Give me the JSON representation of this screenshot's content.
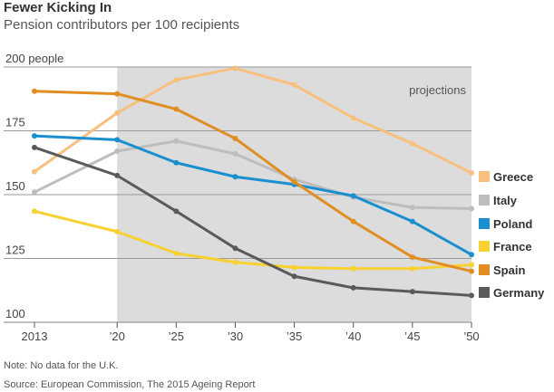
{
  "chart_data": {
    "type": "line",
    "title": "Fewer Kicking In",
    "subtitle": "Pension contributors per 100 recipients",
    "x": [
      2013,
      2020,
      2025,
      2030,
      2035,
      2040,
      2045,
      2050
    ],
    "x_tick_labels": [
      "2013",
      "’20",
      "’25",
      "’30",
      "’35",
      "’40",
      "’45",
      "’50"
    ],
    "y_tick_labels": [
      "200 people",
      "175",
      "150",
      "125",
      "100"
    ],
    "ylim": [
      100,
      200
    ],
    "shaded_region": {
      "from": 2020,
      "to": 2050,
      "label": "projections"
    },
    "series": [
      {
        "name": "Greece",
        "color": "#f8c07f",
        "values": [
          159,
          182,
          195,
          199.5,
          193,
          180,
          170,
          158.5
        ]
      },
      {
        "name": "Italy",
        "color": "#bdbdbd",
        "values": [
          151,
          167,
          171,
          166,
          156,
          149,
          145,
          144.5
        ]
      },
      {
        "name": "Poland",
        "color": "#1a8fd0",
        "values": [
          173,
          171.5,
          162.5,
          157,
          154,
          149.5,
          139.5,
          126.5
        ]
      },
      {
        "name": "France",
        "color": "#f7d130",
        "values": [
          143.5,
          135.5,
          127,
          123.5,
          121.5,
          121,
          121,
          122.5
        ]
      },
      {
        "name": "Spain",
        "color": "#e08d22",
        "values": [
          190.5,
          189.5,
          183.5,
          172,
          155,
          139.5,
          125.5,
          120
        ]
      },
      {
        "name": "Germany",
        "color": "#5a5a5a",
        "values": [
          168.5,
          157.5,
          143.5,
          129,
          118,
          113.5,
          112,
          110.5
        ]
      }
    ],
    "grid": true
  },
  "footer": {
    "note": "Note: No data for the U.K.",
    "source": "Source: European Commission, The 2015 Ageing Report"
  },
  "colors": {
    "shade": "#dcdcdc",
    "grid": "#9a9a9a",
    "axis": "#555555"
  }
}
